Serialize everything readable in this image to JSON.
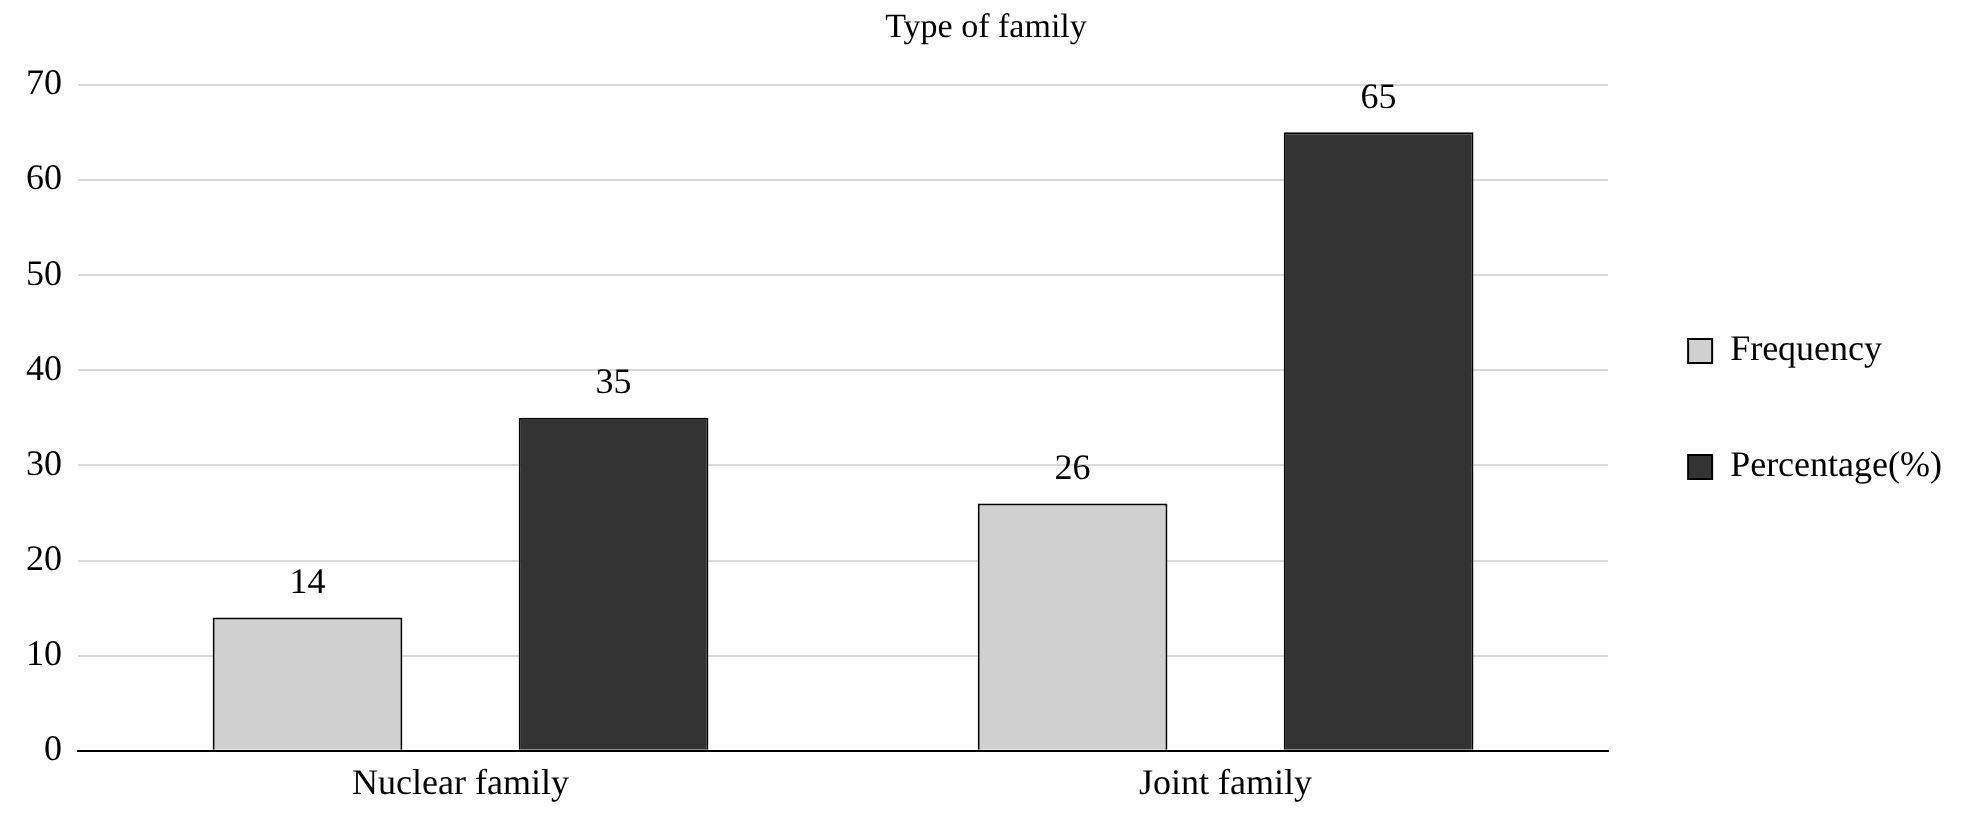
{
  "chart_data": {
    "type": "bar",
    "title": "Type of family",
    "categories": [
      "Nuclear family",
      "Joint family"
    ],
    "series": [
      {
        "name": "Frequency",
        "color": "#d0d0d0",
        "values": [
          14,
          26
        ]
      },
      {
        "name": "Percentage(%)",
        "color": "#333333",
        "values": [
          35,
          65
        ]
      }
    ],
    "ylim": [
      0,
      70
    ],
    "yticks": [
      0,
      10,
      20,
      30,
      40,
      50,
      60,
      70
    ],
    "grid": "y",
    "legend": "right",
    "data_labels": true
  }
}
